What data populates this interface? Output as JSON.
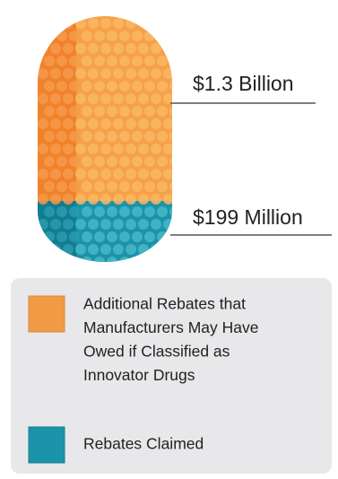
{
  "pill": {
    "upper_label": "$1.3 Billion",
    "lower_label": "$199 Million"
  },
  "legend": {
    "items": [
      {
        "lines": [
          "Additional Rebates that",
          "Manufacturers May Have",
          "Owed if Classified as",
          "Innovator Drugs"
        ]
      },
      {
        "lines": [
          "Rebates Claimed"
        ]
      }
    ]
  }
}
